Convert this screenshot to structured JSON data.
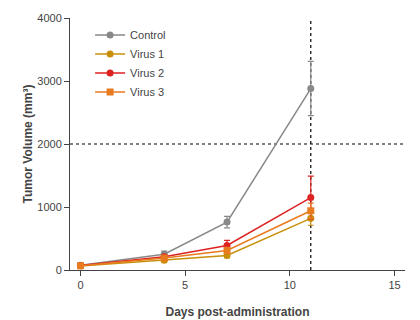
{
  "chart_data": {
    "type": "line",
    "x_label": "Days post-administration",
    "y_label": "Tumor Volume (mm³)",
    "x": [
      0,
      4,
      7,
      11
    ],
    "series": [
      {
        "name": "Control",
        "color": "#888888",
        "marker": "circle",
        "values": [
          75,
          250,
          760,
          2880
        ],
        "yerr": [
          15,
          50,
          90,
          430
        ]
      },
      {
        "name": "Virus 1",
        "color": "#C8900A",
        "marker": "circle",
        "values": [
          65,
          155,
          230,
          820
        ],
        "yerr": [
          10,
          25,
          35,
          110
        ]
      },
      {
        "name": "Virus 2",
        "color": "#DD2222",
        "marker": "circle",
        "values": [
          70,
          210,
          390,
          1150
        ],
        "yerr": [
          10,
          30,
          80,
          340
        ]
      },
      {
        "name": "Virus 3",
        "color": "#E87A20",
        "marker": "square",
        "values": [
          68,
          190,
          310,
          940
        ],
        "yerr": [
          10,
          22,
          50,
          120
        ]
      }
    ],
    "xlim": [
      -0.5,
      15.5
    ],
    "ylim": [
      0,
      4000
    ],
    "xticks": [
      0,
      5,
      10,
      15
    ],
    "yticks": [
      0,
      1000,
      2000,
      3000,
      4000
    ],
    "hlines": [
      2000
    ],
    "vlines": [
      11
    ],
    "grid": false,
    "legend": "upper left"
  }
}
